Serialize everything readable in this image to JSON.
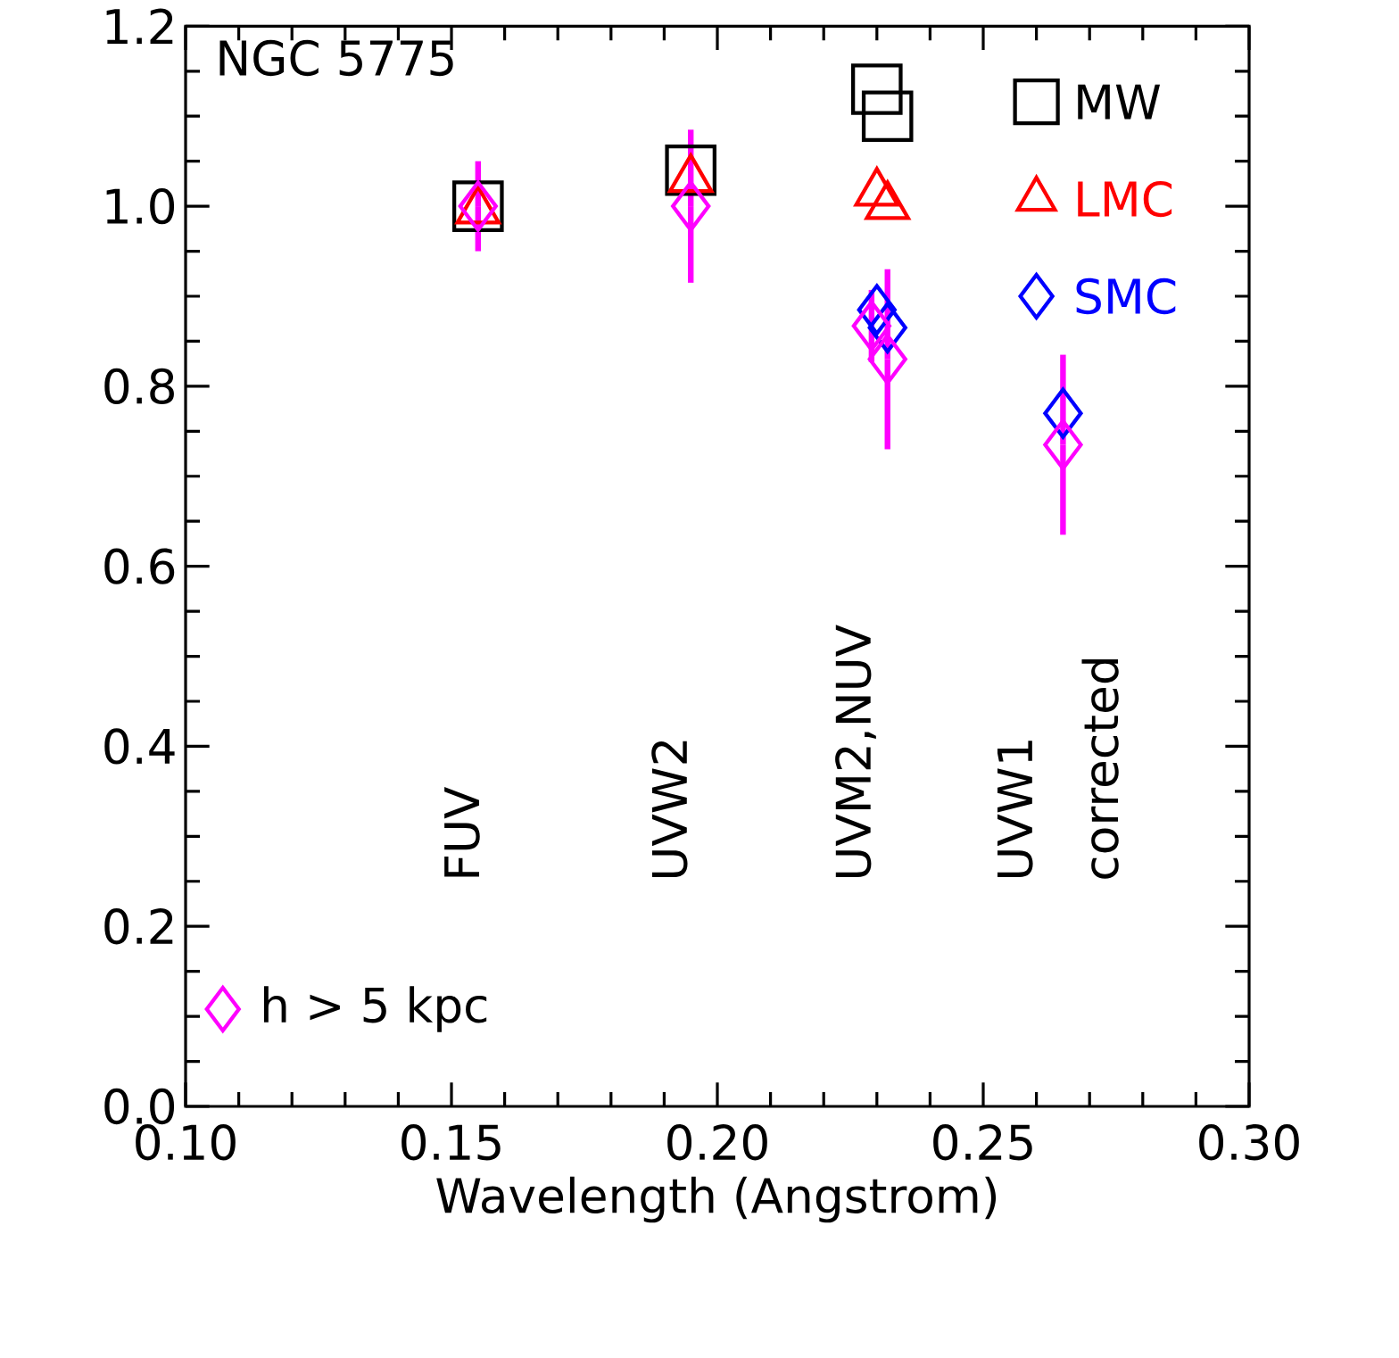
{
  "chart_data": {
    "type": "scatter",
    "xlabel": "Wavelength (Angstrom)",
    "annotations": [
      "NGC 5775",
      "FUV",
      "UVW2",
      "UVM2,NUV",
      "UVW1",
      "corrected"
    ],
    "series": [
      {
        "name": "MW",
        "color": "#000000",
        "marker": "square",
        "x": [
          0.155,
          0.195,
          0.23,
          0.232
        ],
        "values": [
          1.0,
          1.04,
          1.13,
          1.1
        ]
      },
      {
        "name": "LMC",
        "color": "#ff0000",
        "marker": "triangle",
        "x": [
          0.155,
          0.195,
          0.23,
          0.232
        ],
        "values": [
          0.995,
          1.03,
          1.015,
          1.0
        ]
      },
      {
        "name": "SMC",
        "color": "#0000ff",
        "marker": "diamond",
        "x": [
          0.23,
          0.232,
          0.265
        ],
        "values": [
          0.885,
          0.865,
          0.77
        ]
      },
      {
        "name": "h > 5 kpc",
        "color": "#ff00ff",
        "marker": "diamond",
        "x": [
          0.155,
          0.195,
          0.229,
          0.232,
          0.265
        ],
        "values": [
          1.0,
          1.0,
          0.867,
          0.83,
          0.735
        ],
        "errors": [
          0.05,
          0.085,
          0.04,
          0.1,
          0.1
        ]
      }
    ],
    "xlim": [
      0.1,
      0.3
    ],
    "xticks": [
      {
        "value": 0.1,
        "label": "0.10"
      },
      {
        "value": 0.15,
        "label": "0.15"
      },
      {
        "value": 0.2,
        "label": "0.20"
      },
      {
        "value": 0.25,
        "label": "0.25"
      },
      {
        "value": 0.3,
        "label": "0.30"
      }
    ],
    "ylim": [
      0,
      1.2
    ],
    "yticks": [
      {
        "value": 0,
        "label": "0.0"
      },
      {
        "value": 0.2,
        "label": "0.2"
      },
      {
        "value": 0.4,
        "label": "0.4"
      },
      {
        "value": 0.6,
        "label": "0.6"
      },
      {
        "value": 0.8,
        "label": "0.8"
      },
      {
        "value": 1.0,
        "label": "1.0"
      },
      {
        "value": 1.2,
        "label": "1.2"
      }
    ],
    "legend": "top right"
  }
}
